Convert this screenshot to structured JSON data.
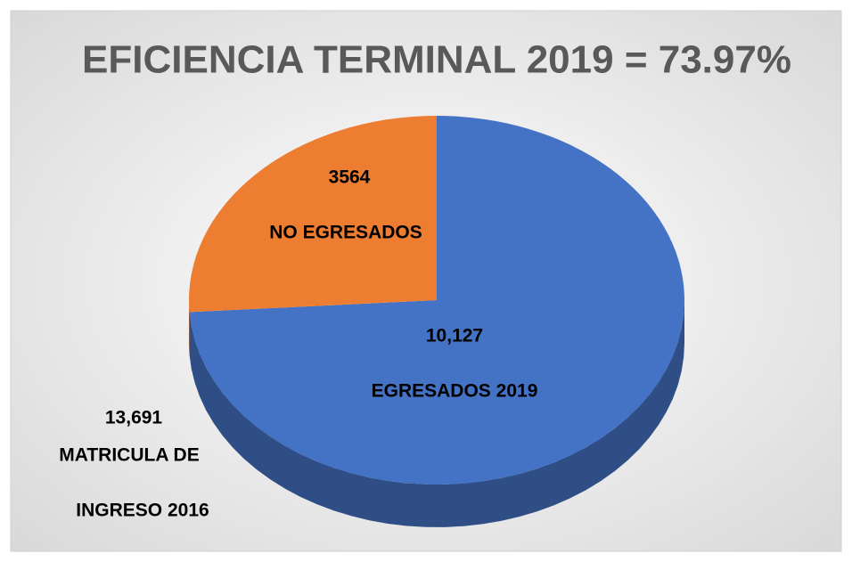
{
  "chart_data": {
    "type": "pie",
    "title": "EFICIENCIA TERMINAL 2019 = 73.97%",
    "categories": [
      "EGRESADOS 2019",
      "NO EGRESADOS"
    ],
    "values": [
      10127,
      3564
    ],
    "value_labels": [
      "10,127",
      "3564"
    ],
    "colors": [
      "#4472c4",
      "#ed7d31"
    ],
    "annotations": [
      "13,691",
      "MATRICULA DE",
      "INGRESO 2016"
    ]
  }
}
